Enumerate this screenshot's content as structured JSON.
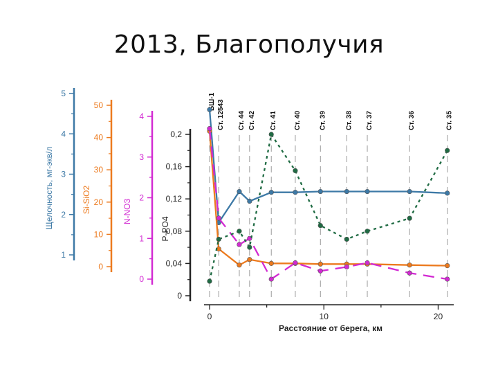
{
  "slide": {
    "title": "2013, Благополучия"
  },
  "chart_data": {
    "type": "line",
    "xlabel": "Расстояние от берега, км",
    "xlim": [
      0,
      21
    ],
    "xticks": [
      0,
      10,
      20
    ],
    "grid": false,
    "stations": [
      {
        "label": "БШ-1",
        "x": 0
      },
      {
        "label": "Ст. 12543",
        "x": 0.8
      },
      {
        "label": "Ст. 44",
        "x": 2.6
      },
      {
        "label": "Ст. 42",
        "x": 3.5
      },
      {
        "label": "Ст. 41",
        "x": 5.4
      },
      {
        "label": "Ст. 40",
        "x": 7.5
      },
      {
        "label": "Ст. 39",
        "x": 9.7
      },
      {
        "label": "Ст. 38",
        "x": 12
      },
      {
        "label": "Ст. 37",
        "x": 13.8
      },
      {
        "label": "Ст. 36",
        "x": 17.5
      },
      {
        "label": "Ст. 35",
        "x": 20.8
      }
    ],
    "axes": [
      {
        "label": "Щелочность, мг-экв/л",
        "color": "#3d79a6",
        "min": 1,
        "max": 5,
        "ticks": [
          "1",
          "2",
          "3",
          "4",
          "5"
        ]
      },
      {
        "label": "Si-SiO2",
        "color": "#ec7a1e",
        "min": 0,
        "max": 50,
        "ticks": [
          "0",
          "10",
          "20",
          "30",
          "40",
          "50"
        ]
      },
      {
        "label": "N-NO3",
        "color": "#d22ad2",
        "min": 0,
        "max": 4,
        "ticks": [
          "0",
          "1",
          "2",
          "3",
          "4"
        ]
      },
      {
        "label": "P-PO4",
        "color": "#222222",
        "min": 0,
        "max": 0.2,
        "ticks": [
          "0",
          "0,04",
          "0,08",
          "0,12",
          "0,16",
          "0,2"
        ]
      }
    ],
    "series": [
      {
        "axis": 0,
        "color": "#3d79a6",
        "dash": "solid",
        "x": [
          0,
          0.8,
          2.6,
          3.5,
          5.4,
          7.5,
          9.7,
          12,
          13.8,
          17.5,
          20.8
        ],
        "values": [
          4.6,
          1.8,
          2.57,
          2.33,
          2.55,
          2.55,
          2.57,
          2.57,
          2.57,
          2.57,
          2.53
        ]
      },
      {
        "axis": 1,
        "color": "#ec7a1e",
        "dash": "solid",
        "x": [
          0,
          0.8,
          2.6,
          3.5,
          5.4,
          7.5,
          9.7,
          12,
          13.8,
          17.5,
          20.8
        ],
        "values": [
          42,
          5.5,
          0.5,
          2.2,
          1,
          1,
          0.8,
          0.8,
          0.8,
          0.5,
          0.3
        ]
      },
      {
        "axis": 2,
        "color": "#d22ad2",
        "dash": "long",
        "x": [
          0,
          0.8,
          2.6,
          3.5,
          5.4,
          7.5,
          9.7,
          12,
          13.8,
          17.5,
          20.8
        ],
        "values": [
          3.7,
          1.5,
          0.85,
          1.0,
          0.0,
          0.4,
          0.2,
          0.3,
          0.4,
          0.15,
          0.0
        ]
      },
      {
        "axis": 3,
        "color": "#1f6b43",
        "dash": "dot",
        "x": [
          0,
          0.8,
          2.6,
          3.5,
          5.4,
          7.5,
          9.7,
          12,
          13.8,
          17.5,
          20.8
        ],
        "values": [
          0.018,
          0.07,
          0.08,
          0.06,
          0.2,
          0.155,
          0.087,
          0.07,
          0.08,
          0.096,
          0.18
        ]
      }
    ]
  }
}
